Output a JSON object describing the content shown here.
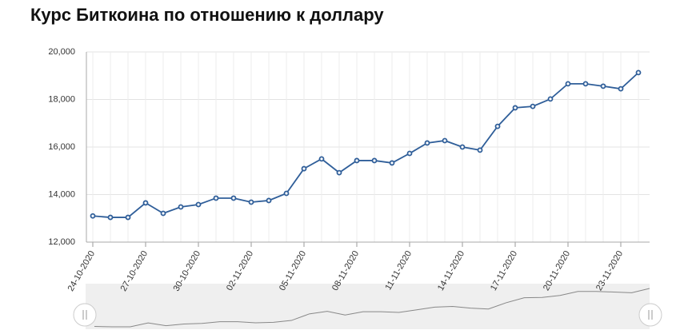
{
  "chart_data": {
    "type": "line",
    "title": "Курс Биткоина по отношению к доллару",
    "categories": [
      "24-10-2020",
      null,
      null,
      "27-10-2020",
      null,
      null,
      "30-10-2020",
      null,
      null,
      "02-11-2020",
      null,
      null,
      "05-11-2020",
      null,
      null,
      "08-11-2020",
      null,
      null,
      "11-11-2020",
      null,
      null,
      "14-11-2020",
      null,
      null,
      "17-11-2020",
      null,
      null,
      "20-11-2020",
      null,
      null,
      "23-11-2020",
      null
    ],
    "series": [
      {
        "color": "#2f5e99",
        "values": [
          13100,
          13040,
          13040,
          13650,
          13210,
          13480,
          13580,
          13850,
          13850,
          13680,
          13750,
          14050,
          15090,
          15500,
          14920,
          15430,
          15430,
          15330,
          15730,
          16170,
          16270,
          16000,
          15870,
          16870,
          17650,
          17710,
          18020,
          18660,
          18660,
          18560,
          18450,
          19130
        ]
      }
    ],
    "ylim": [
      12000,
      20000
    ],
    "yticks": [
      {
        "value": 12000,
        "label": "12,000"
      },
      {
        "value": 14000,
        "label": "14,000"
      },
      {
        "value": 16000,
        "label": "16,000"
      },
      {
        "value": 18000,
        "label": "18,000"
      },
      {
        "value": 20000,
        "label": "20,000"
      }
    ],
    "grid": true
  }
}
